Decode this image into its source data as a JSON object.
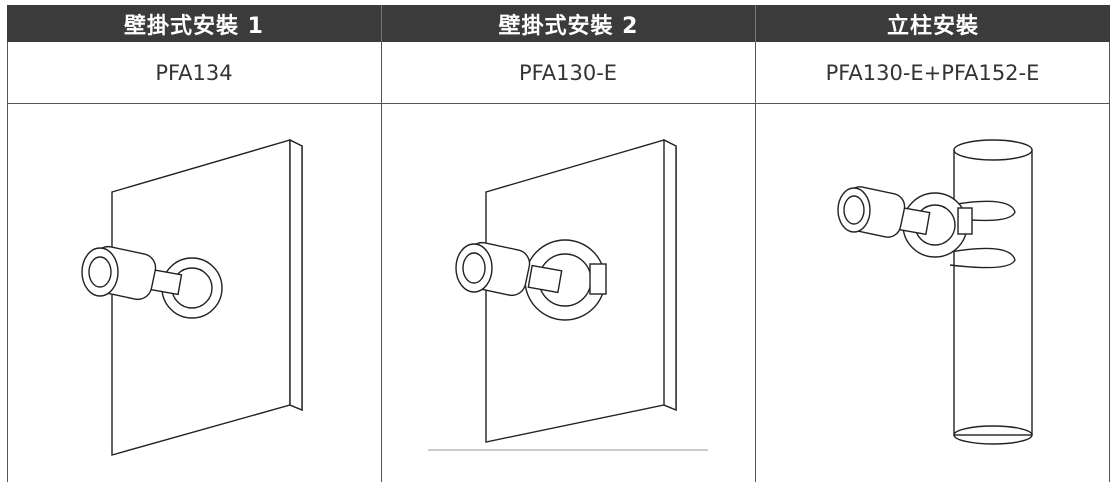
{
  "table": {
    "header": [
      "壁掛式安裝 1",
      "壁掛式安裝 2",
      "立柱安裝"
    ],
    "rows": [
      [
        "PFA134",
        "PFA130-E",
        "PFA130-E+PFA152-E"
      ]
    ]
  }
}
